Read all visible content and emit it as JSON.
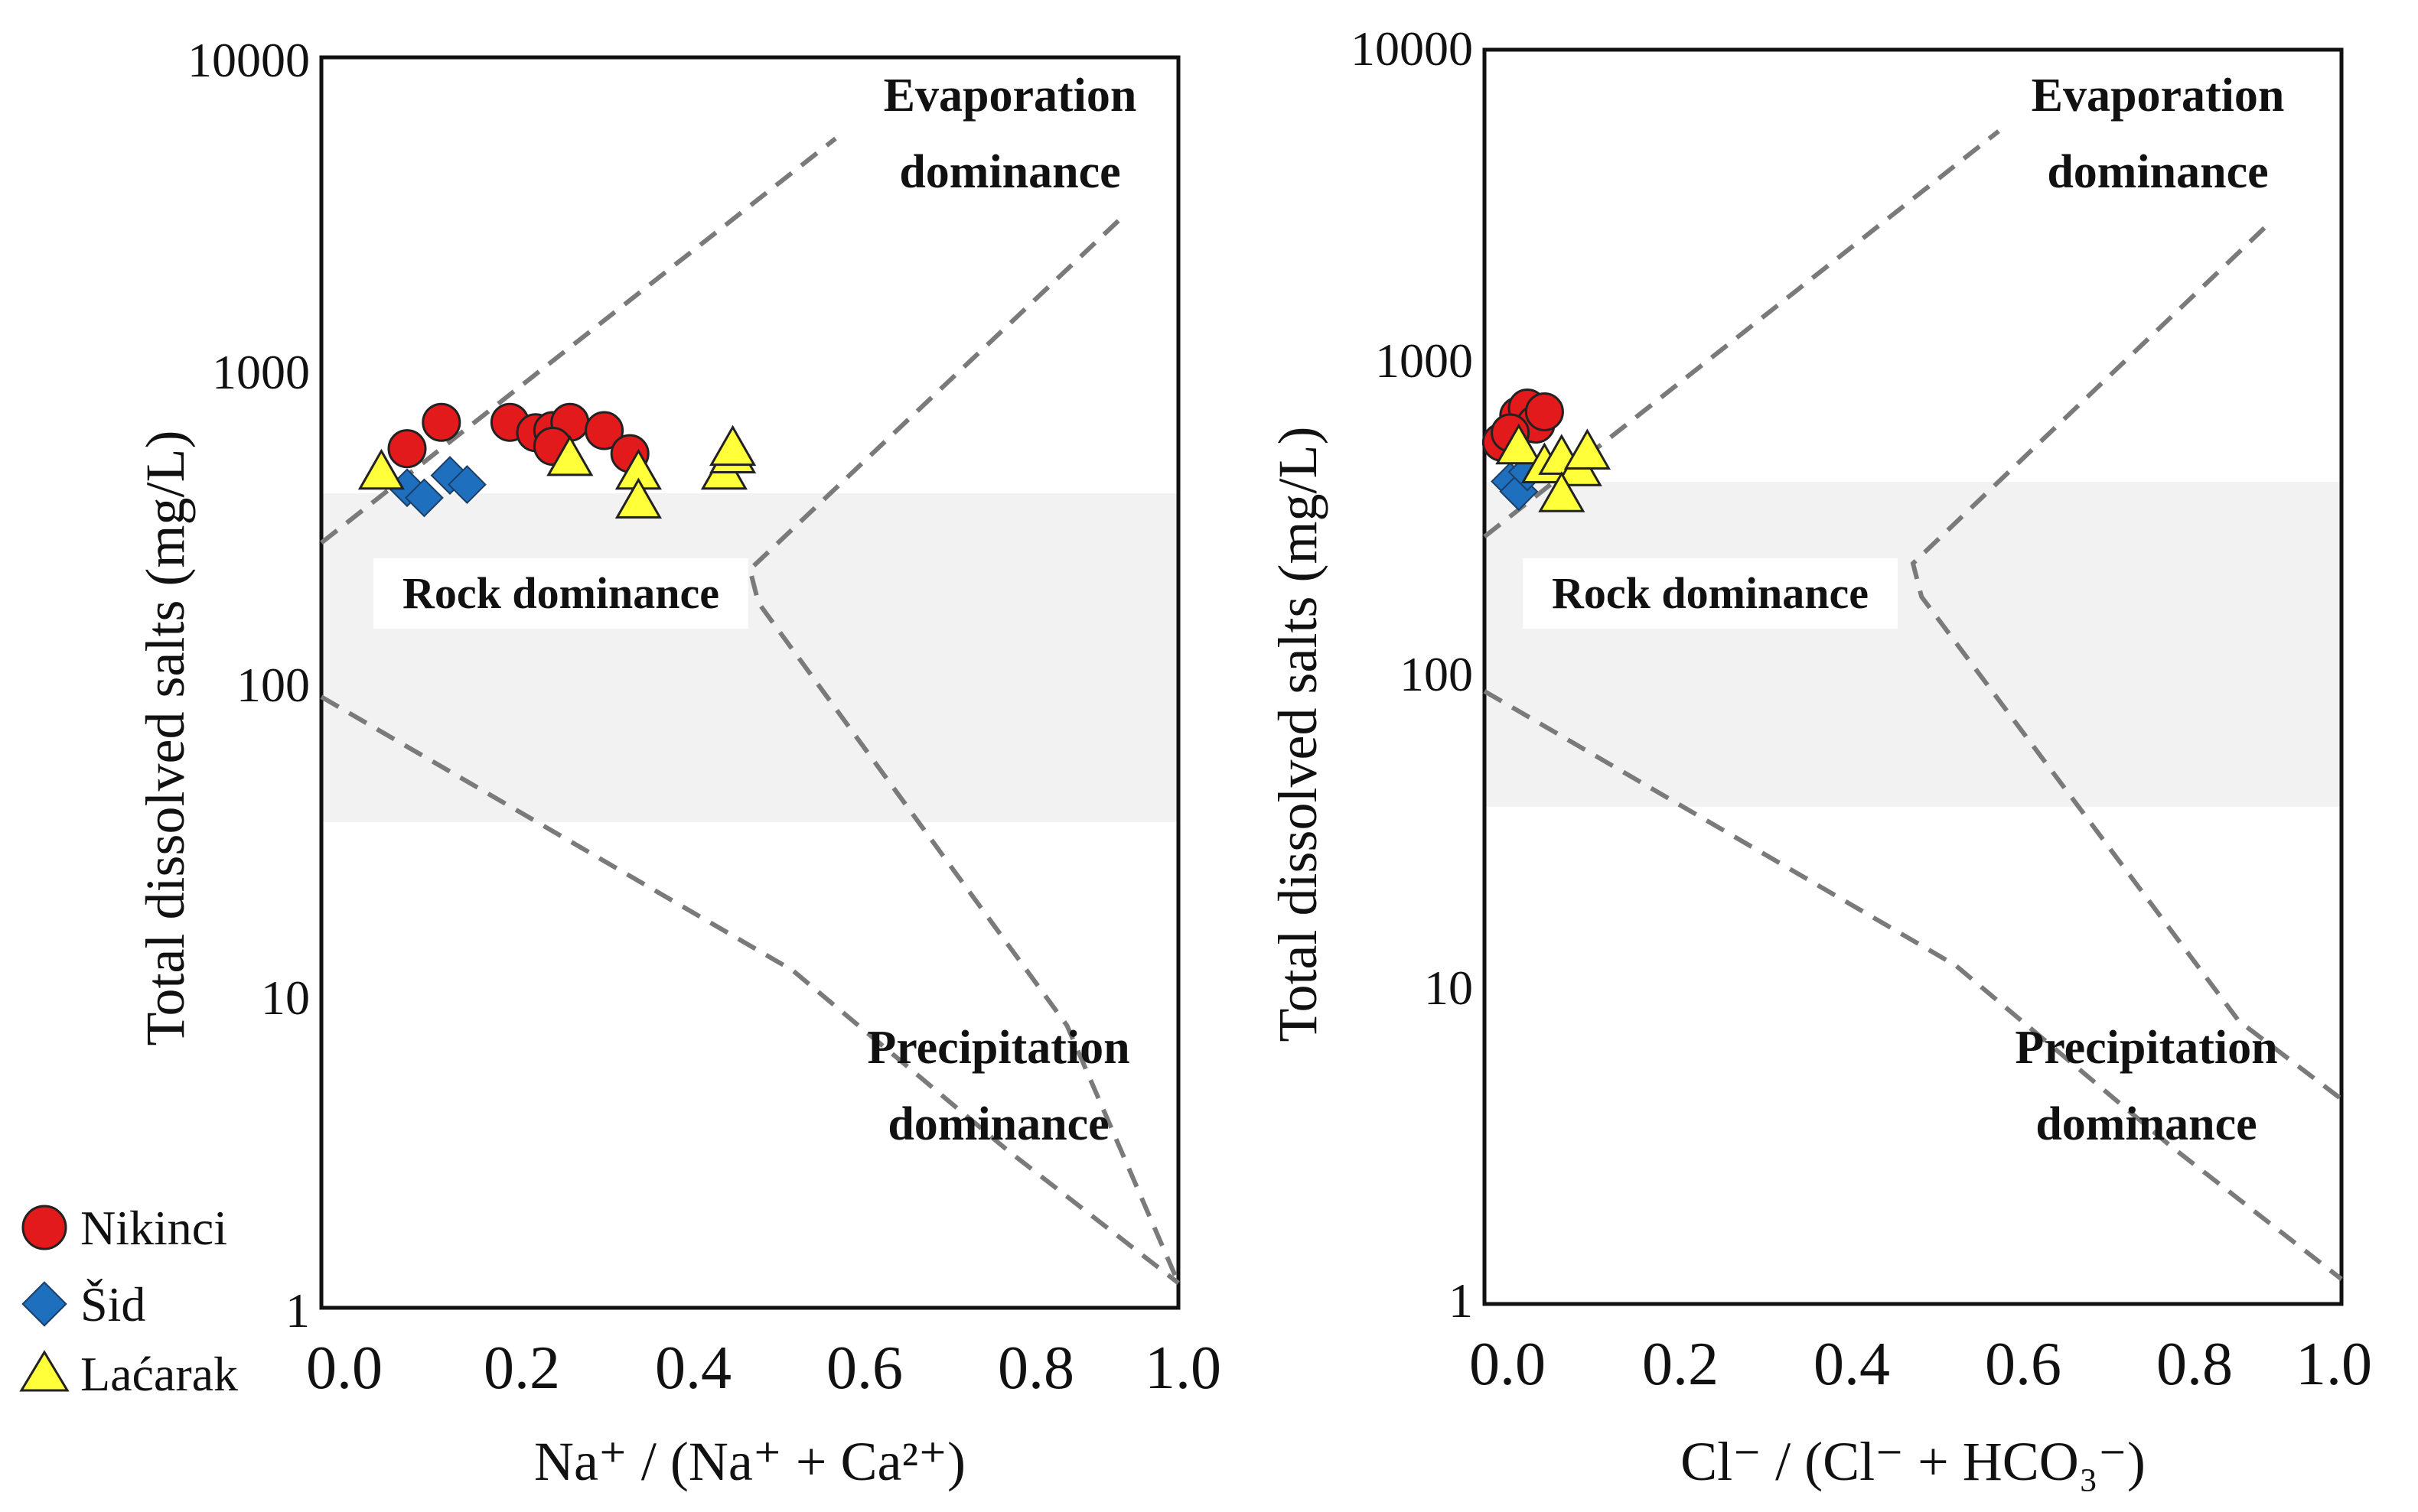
{
  "colors": {
    "nikinci": "#e31a1c",
    "sid": "#1f6fbf",
    "lacarak": "#ffff3a",
    "boundary": "#7a7a7a",
    "rock_band": "#f2f2f2"
  },
  "legend": {
    "items": [
      {
        "label": "Nikinci",
        "marker": "circle"
      },
      {
        "label": "Šid",
        "marker": "diamond"
      },
      {
        "label": "Laćarak",
        "marker": "triangle"
      }
    ]
  },
  "chart_data": [
    {
      "type": "scatter",
      "title": "",
      "xlabel": "Na⁺ / (Na⁺ + Ca²⁺)",
      "ylabel": "Total dissolved salts (mg/L)",
      "xlim": [
        0,
        1
      ],
      "ylim": [
        1,
        10000
      ],
      "yscale": "log",
      "xticks": [
        "0.0",
        "0.2",
        "0.4",
        "0.6",
        "0.8",
        "1.0"
      ],
      "yticks": [
        "10000",
        "1000",
        "100",
        "10",
        "1"
      ],
      "regions": {
        "evaporation": [
          "Evaporation",
          "dominance"
        ],
        "rock": "Rock dominance",
        "precipitation": [
          "Precipitation",
          "dominance"
        ]
      },
      "boundaries": [
        {
          "name": "evaporation-upper-boundary",
          "points": [
            [
              0.0,
              280
            ],
            [
              0.6,
              5500
            ]
          ]
        },
        {
          "name": "evaporation-lower-boundary",
          "points": [
            [
              0.93,
              3000
            ],
            [
              0.5,
              230
            ],
            [
              0.51,
              180
            ],
            [
              0.87,
              8
            ],
            [
              1.0,
              1.2
            ]
          ]
        },
        {
          "name": "precipitation-boundary",
          "points": [
            [
              0.0,
              90
            ],
            [
              0.55,
              12
            ],
            [
              0.8,
              3.2
            ],
            [
              1.0,
              1.2
            ]
          ]
        }
      ],
      "series": [
        {
          "name": "Nikinci",
          "marker": "circle",
          "points": [
            [
              0.1,
              560
            ],
            [
              0.14,
              680
            ],
            [
              0.22,
              680
            ],
            [
              0.25,
              630
            ],
            [
              0.27,
              640
            ],
            [
              0.29,
              680
            ],
            [
              0.33,
              640
            ],
            [
              0.27,
              570
            ],
            [
              0.36,
              540
            ]
          ]
        },
        {
          "name": "Šid",
          "marker": "diamond",
          "points": [
            [
              0.1,
              420
            ],
            [
              0.12,
              390
            ],
            [
              0.15,
              460
            ],
            [
              0.17,
              430
            ]
          ]
        },
        {
          "name": "Laćarak",
          "marker": "triangle",
          "points": [
            [
              0.07,
              470
            ],
            [
              0.29,
              520
            ],
            [
              0.37,
              470
            ],
            [
              0.37,
              380
            ],
            [
              0.47,
              470
            ],
            [
              0.48,
              530
            ],
            [
              0.48,
              560
            ]
          ]
        }
      ]
    },
    {
      "type": "scatter",
      "title": "",
      "xlabel": "Cl⁻ / (Cl⁻ + HCO₃⁻)",
      "ylabel": "Total dissolved salts (mg/L)",
      "xlim": [
        0,
        1
      ],
      "ylim": [
        1,
        10000
      ],
      "yscale": "log",
      "xticks": [
        "0.0",
        "0.2",
        "0.4",
        "0.6",
        "0.8",
        "1.0"
      ],
      "yticks": [
        "10000",
        "1000",
        "100",
        "10",
        "1"
      ],
      "regions": {
        "evaporation": [
          "Evaporation",
          "dominance"
        ],
        "rock": "Rock dominance",
        "precipitation": [
          "Precipitation",
          "dominance"
        ]
      },
      "boundaries": [
        {
          "name": "evaporation-upper-boundary",
          "points": [
            [
              0.0,
              280
            ],
            [
              0.6,
              5500
            ]
          ]
        },
        {
          "name": "evaporation-lower-boundary",
          "points": [
            [
              0.91,
              2700
            ],
            [
              0.5,
              230
            ],
            [
              0.51,
              180
            ],
            [
              0.88,
              8
            ],
            [
              1.0,
              4.5
            ]
          ]
        },
        {
          "name": "precipitation-boundary",
          "points": [
            [
              0.0,
              90
            ],
            [
              0.55,
              12
            ],
            [
              0.8,
              3.2
            ],
            [
              1.0,
              1.2
            ]
          ]
        }
      ],
      "series": [
        {
          "name": "Nikinci",
          "marker": "circle",
          "points": [
            [
              0.02,
              560
            ],
            [
              0.04,
              680
            ],
            [
              0.05,
              720
            ],
            [
              0.06,
              640
            ],
            [
              0.07,
              700
            ],
            [
              0.03,
              600
            ]
          ]
        },
        {
          "name": "Šid",
          "marker": "diamond",
          "points": [
            [
              0.03,
              420
            ],
            [
              0.04,
              390
            ],
            [
              0.05,
              450
            ]
          ]
        },
        {
          "name": "Laćarak",
          "marker": "triangle",
          "points": [
            [
              0.04,
              540
            ],
            [
              0.07,
              470
            ],
            [
              0.09,
              500
            ],
            [
              0.11,
              460
            ],
            [
              0.09,
              380
            ],
            [
              0.12,
              520
            ]
          ]
        }
      ]
    }
  ]
}
